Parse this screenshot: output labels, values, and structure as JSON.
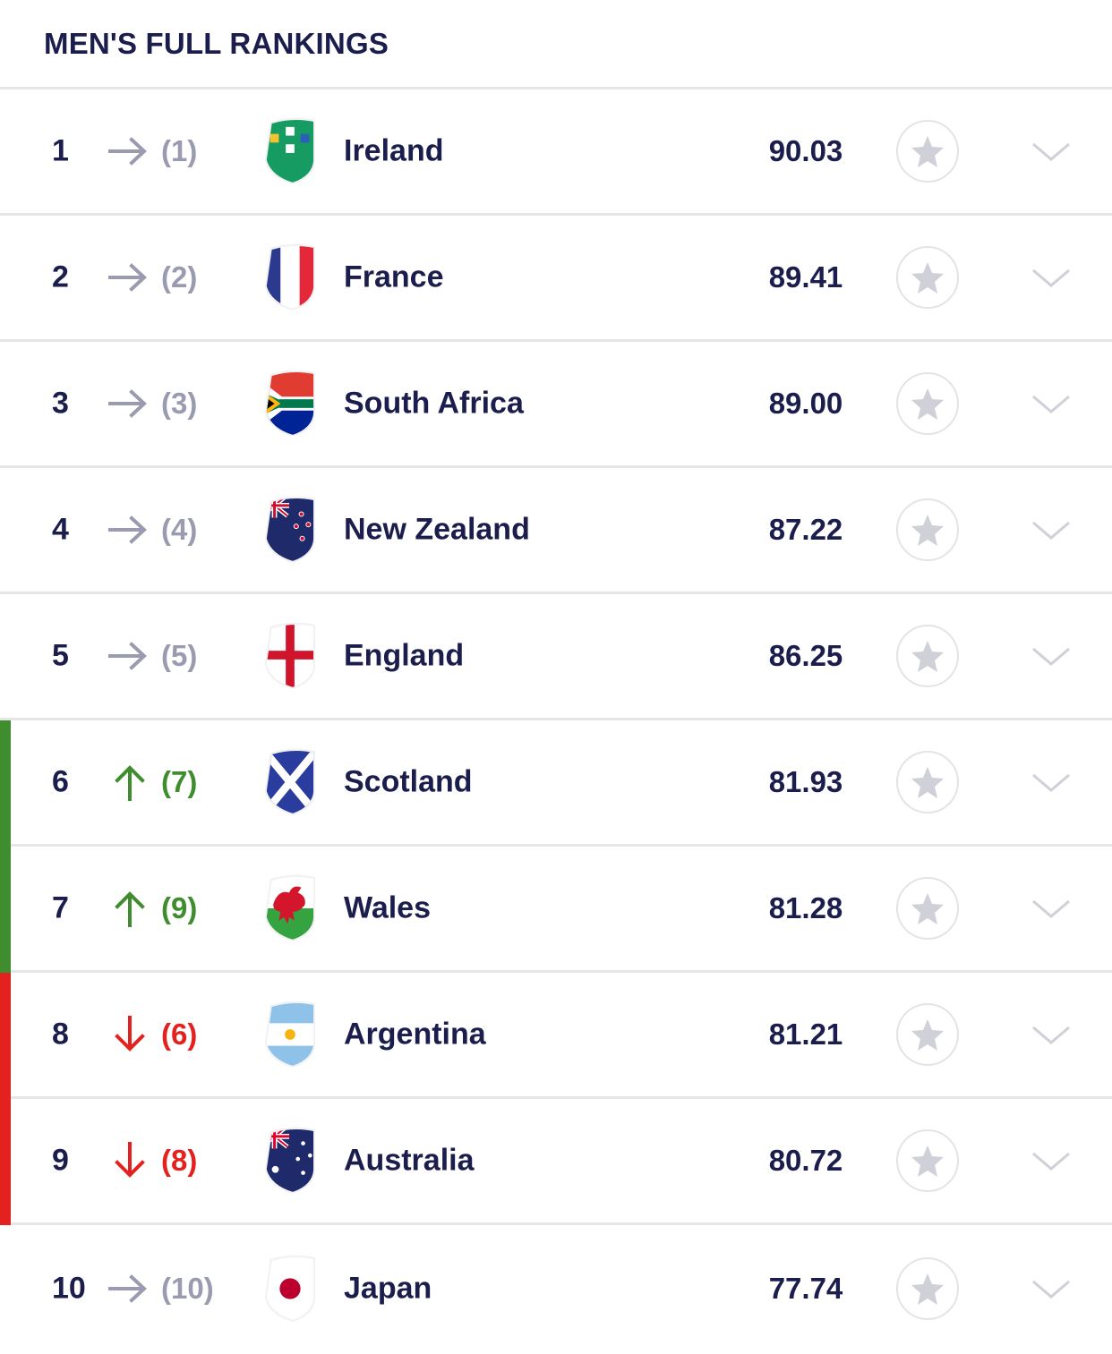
{
  "header": {
    "title": "MEN'S FULL RANKINGS"
  },
  "colors": {
    "navy": "#1b1d4d",
    "neutral_movement": "#9a9ab0",
    "up_movement": "#3f8d2f",
    "down_movement": "#e3221f",
    "divider": "#e6e6e9"
  },
  "rankings": [
    {
      "position": "1",
      "movement": "same",
      "previous": "(1)",
      "team": "Ireland",
      "points": "90.03",
      "flag_icon": "ireland-flag-icon"
    },
    {
      "position": "2",
      "movement": "same",
      "previous": "(2)",
      "team": "France",
      "points": "89.41",
      "flag_icon": "france-flag-icon"
    },
    {
      "position": "3",
      "movement": "same",
      "previous": "(3)",
      "team": "South Africa",
      "points": "89.00",
      "flag_icon": "south-africa-flag-icon"
    },
    {
      "position": "4",
      "movement": "same",
      "previous": "(4)",
      "team": "New Zealand",
      "points": "87.22",
      "flag_icon": "new-zealand-flag-icon"
    },
    {
      "position": "5",
      "movement": "same",
      "previous": "(5)",
      "team": "England",
      "points": "86.25",
      "flag_icon": "england-flag-icon"
    },
    {
      "position": "6",
      "movement": "up",
      "previous": "(7)",
      "team": "Scotland",
      "points": "81.93",
      "flag_icon": "scotland-flag-icon"
    },
    {
      "position": "7",
      "movement": "up",
      "previous": "(9)",
      "team": "Wales",
      "points": "81.28",
      "flag_icon": "wales-flag-icon"
    },
    {
      "position": "8",
      "movement": "down",
      "previous": "(6)",
      "team": "Argentina",
      "points": "81.21",
      "flag_icon": "argentina-flag-icon"
    },
    {
      "position": "9",
      "movement": "down",
      "previous": "(8)",
      "team": "Australia",
      "points": "80.72",
      "flag_icon": "australia-flag-icon"
    },
    {
      "position": "10",
      "movement": "same",
      "previous": "(10)",
      "team": "Japan",
      "points": "77.74",
      "flag_icon": "japan-flag-icon"
    }
  ]
}
